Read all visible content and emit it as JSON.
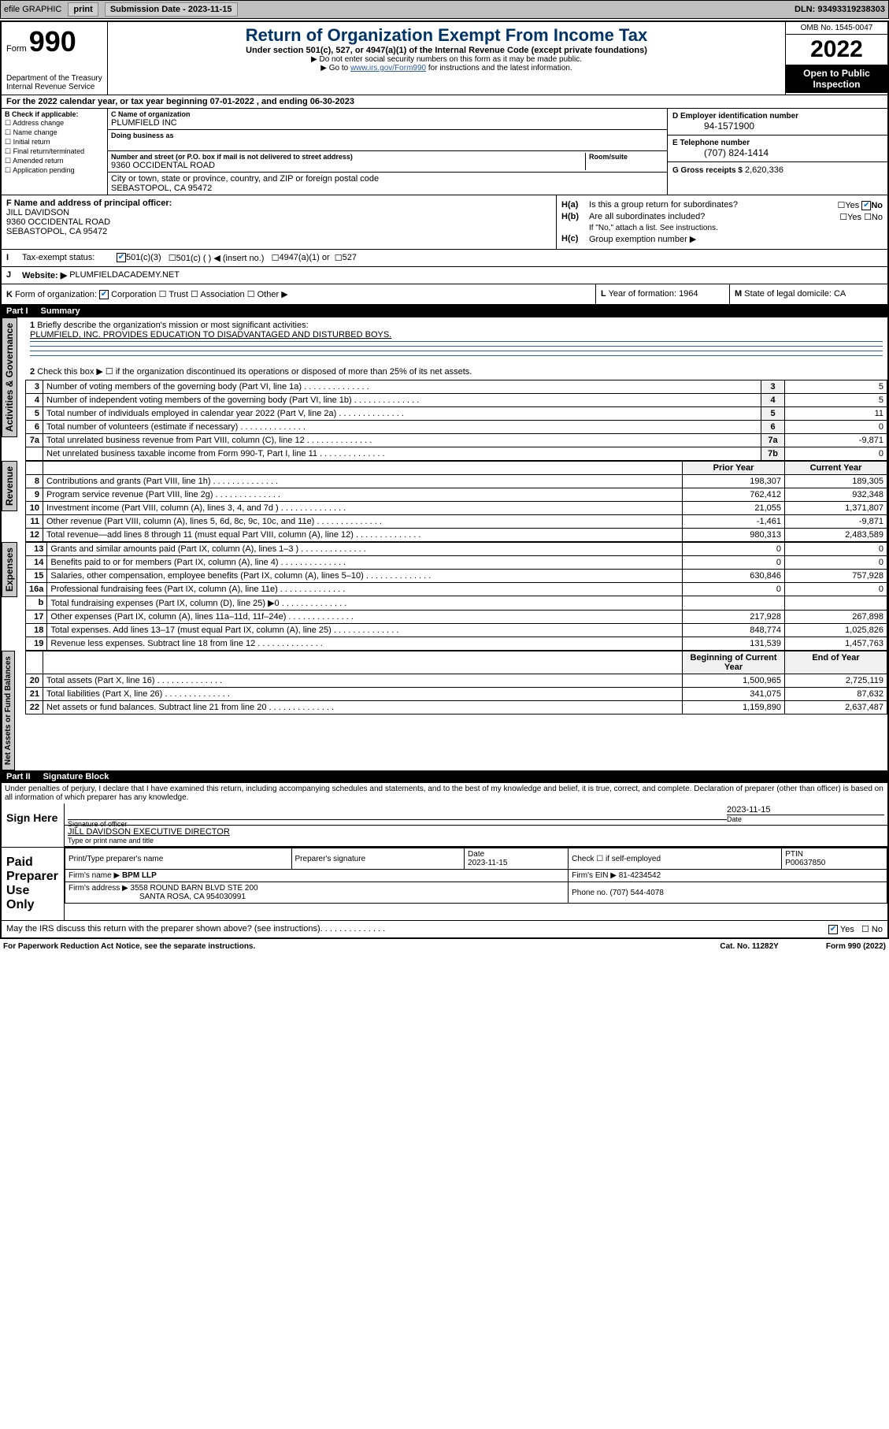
{
  "topbar": {
    "efile": "efile GRAPHIC",
    "print": "print",
    "sub_date_label": "Submission Date - 2023-11-15",
    "dln": "DLN: 93493319238303"
  },
  "header": {
    "form": "Form",
    "form_no": "990",
    "dept1": "Department of the Treasury",
    "dept2": "Internal Revenue Service",
    "title": "Return of Organization Exempt From Income Tax",
    "sub": "Under section 501(c), 527, or 4947(a)(1) of the Internal Revenue Code (except private foundations)",
    "note1": "▶ Do not enter social security numbers on this form as it may be made public.",
    "note2_pre": "▶ Go to ",
    "note2_link": "www.irs.gov/Form990",
    "note2_post": " for instructions and the latest information.",
    "omb": "OMB No. 1545-0047",
    "year": "2022",
    "open": "Open to Public Inspection"
  },
  "taxyear": "For the 2022 calendar year, or tax year beginning 07-01-2022   , and ending 06-30-2023",
  "b": {
    "label": "B Check if applicable:",
    "opts": [
      "Address change",
      "Name change",
      "Initial return",
      "Final return/terminated",
      "Amended return",
      "Application pending"
    ]
  },
  "c": {
    "name_lbl": "C Name of organization",
    "name": "PLUMFIELD INC",
    "dba_lbl": "Doing business as",
    "street_lbl": "Number and street (or P.O. box if mail is not delivered to street address)",
    "room_lbl": "Room/suite",
    "street": "9360 OCCIDENTAL ROAD",
    "city_lbl": "City or town, state or province, country, and ZIP or foreign postal code",
    "city": "SEBASTOPOL, CA  95472"
  },
  "d": {
    "lbl": "D Employer identification number",
    "val": "94-1571900"
  },
  "e": {
    "lbl": "E Telephone number",
    "val": "(707) 824-1414"
  },
  "g": {
    "lbl": "G Gross receipts $",
    "val": "2,620,336"
  },
  "f": {
    "lbl": "F  Name and address of principal officer:",
    "name": "JILL DAVIDSON",
    "addr1": "9360 OCCIDENTAL ROAD",
    "addr2": "SEBASTOPOL, CA  95472"
  },
  "h": {
    "a": "Is this a group return for subordinates?",
    "a_ans": "No",
    "b": "Are all subordinates included?",
    "b_note": "If \"No,\" attach a list. See instructions.",
    "c": "Group exemption number ▶"
  },
  "i": {
    "lbl": "I",
    "text": "Tax-exempt status:",
    "opts": [
      "501(c)(3)",
      "501(c) (  ) ◀ (insert no.)",
      "4947(a)(1) or",
      "527"
    ]
  },
  "j": {
    "lbl": "J",
    "text": "Website: ▶",
    "val": "PLUMFIELDACADEMY.NET"
  },
  "k": {
    "lbl": "K",
    "text": "Form of organization:",
    "opts": [
      "Corporation",
      "Trust",
      "Association",
      "Other ▶"
    ]
  },
  "l": {
    "lbl": "L",
    "text": "Year of formation:",
    "val": "1964"
  },
  "m": {
    "lbl": "M",
    "text": "State of legal domicile:",
    "val": "CA"
  },
  "parts": {
    "p1": {
      "label": "Part I",
      "title": "Summary"
    },
    "p2": {
      "label": "Part II",
      "title": "Signature Block"
    }
  },
  "mission": {
    "q": "Briefly describe the organization's mission or most significant activities:",
    "a": "PLUMFIELD, INC. PROVIDES EDUCATION TO DISADVANTAGED AND DISTURBED BOYS."
  },
  "line2": "Check this box ▶ ☐  if the organization discontinued its operations or disposed of more than 25% of its net assets.",
  "vtabs": {
    "ag": "Activities & Governance",
    "rev": "Revenue",
    "exp": "Expenses",
    "na": "Net Assets or Fund Balances"
  },
  "gov_rows": [
    {
      "n": "3",
      "d": "Number of voting members of the governing body (Part VI, line 1a)",
      "box": "3",
      "v": "5"
    },
    {
      "n": "4",
      "d": "Number of independent voting members of the governing body (Part VI, line 1b)",
      "box": "4",
      "v": "5"
    },
    {
      "n": "5",
      "d": "Total number of individuals employed in calendar year 2022 (Part V, line 2a)",
      "box": "5",
      "v": "11"
    },
    {
      "n": "6",
      "d": "Total number of volunteers (estimate if necessary)",
      "box": "6",
      "v": "0"
    },
    {
      "n": "7a",
      "d": "Total unrelated business revenue from Part VIII, column (C), line 12",
      "box": "7a",
      "v": "-9,871"
    },
    {
      "n": "",
      "d": "Net unrelated business taxable income from Form 990-T, Part I, line 11",
      "box": "7b",
      "v": "0"
    }
  ],
  "col_heads": {
    "prior": "Prior Year",
    "curr": "Current Year",
    "beg": "Beginning of Current Year",
    "end": "End of Year"
  },
  "rev_rows": [
    {
      "n": "8",
      "d": "Contributions and grants (Part VIII, line 1h)",
      "p": "198,307",
      "c": "189,305"
    },
    {
      "n": "9",
      "d": "Program service revenue (Part VIII, line 2g)",
      "p": "762,412",
      "c": "932,348"
    },
    {
      "n": "10",
      "d": "Investment income (Part VIII, column (A), lines 3, 4, and 7d )",
      "p": "21,055",
      "c": "1,371,807"
    },
    {
      "n": "11",
      "d": "Other revenue (Part VIII, column (A), lines 5, 6d, 8c, 9c, 10c, and 11e)",
      "p": "-1,461",
      "c": "-9,871"
    },
    {
      "n": "12",
      "d": "Total revenue—add lines 8 through 11 (must equal Part VIII, column (A), line 12)",
      "p": "980,313",
      "c": "2,483,589"
    }
  ],
  "exp_rows": [
    {
      "n": "13",
      "d": "Grants and similar amounts paid (Part IX, column (A), lines 1–3 )",
      "p": "0",
      "c": "0"
    },
    {
      "n": "14",
      "d": "Benefits paid to or for members (Part IX, column (A), line 4)",
      "p": "0",
      "c": "0"
    },
    {
      "n": "15",
      "d": "Salaries, other compensation, employee benefits (Part IX, column (A), lines 5–10)",
      "p": "630,846",
      "c": "757,928"
    },
    {
      "n": "16a",
      "d": "Professional fundraising fees (Part IX, column (A), line 11e)",
      "p": "0",
      "c": "0"
    },
    {
      "n": "b",
      "d": "Total fundraising expenses (Part IX, column (D), line 25) ▶0",
      "p": "",
      "c": ""
    },
    {
      "n": "17",
      "d": "Other expenses (Part IX, column (A), lines 11a–11d, 11f–24e)",
      "p": "217,928",
      "c": "267,898"
    },
    {
      "n": "18",
      "d": "Total expenses. Add lines 13–17 (must equal Part IX, column (A), line 25)",
      "p": "848,774",
      "c": "1,025,826"
    },
    {
      "n": "19",
      "d": "Revenue less expenses. Subtract line 18 from line 12",
      "p": "131,539",
      "c": "1,457,763"
    }
  ],
  "na_rows": [
    {
      "n": "20",
      "d": "Total assets (Part X, line 16)",
      "p": "1,500,965",
      "c": "2,725,119"
    },
    {
      "n": "21",
      "d": "Total liabilities (Part X, line 26)",
      "p": "341,075",
      "c": "87,632"
    },
    {
      "n": "22",
      "d": "Net assets or fund balances. Subtract line 21 from line 20",
      "p": "1,159,890",
      "c": "2,637,487"
    }
  ],
  "penalties": "Under penalties of perjury, I declare that I have examined this return, including accompanying schedules and statements, and to the best of my knowledge and belief, it is true, correct, and complete. Declaration of preparer (other than officer) is based on all information of which preparer has any knowledge.",
  "sign": {
    "here": "Sign Here",
    "sig_lbl": "Signature of officer",
    "date_lbl": "Date",
    "date": "2023-11-15",
    "name": "JILL DAVIDSON  EXECUTIVE DIRECTOR",
    "name_lbl": "Type or print name and title"
  },
  "paid": {
    "title": "Paid Preparer Use Only",
    "headers": [
      "Print/Type preparer's name",
      "Preparer's signature",
      "Date",
      "",
      "PTIN"
    ],
    "date": "2023-11-15",
    "check_txt": "Check ☐ if self-employed",
    "ptin": "P00637850",
    "firm_name_lbl": "Firm's name    ▶",
    "firm_name": "BPM LLP",
    "firm_ein_lbl": "Firm's EIN ▶",
    "firm_ein": "81-4234542",
    "firm_addr_lbl": "Firm's address ▶",
    "firm_addr1": "3558 ROUND BARN BLVD STE 200",
    "firm_addr2": "SANTA ROSA, CA  954030991",
    "phone_lbl": "Phone no.",
    "phone": "(707) 544-4078"
  },
  "irs_discuss": "May the IRS discuss this return with the preparer shown above? (see instructions)",
  "footer": {
    "left": "For Paperwork Reduction Act Notice, see the separate instructions.",
    "mid": "Cat. No. 11282Y",
    "right": "Form 990 (2022)"
  }
}
